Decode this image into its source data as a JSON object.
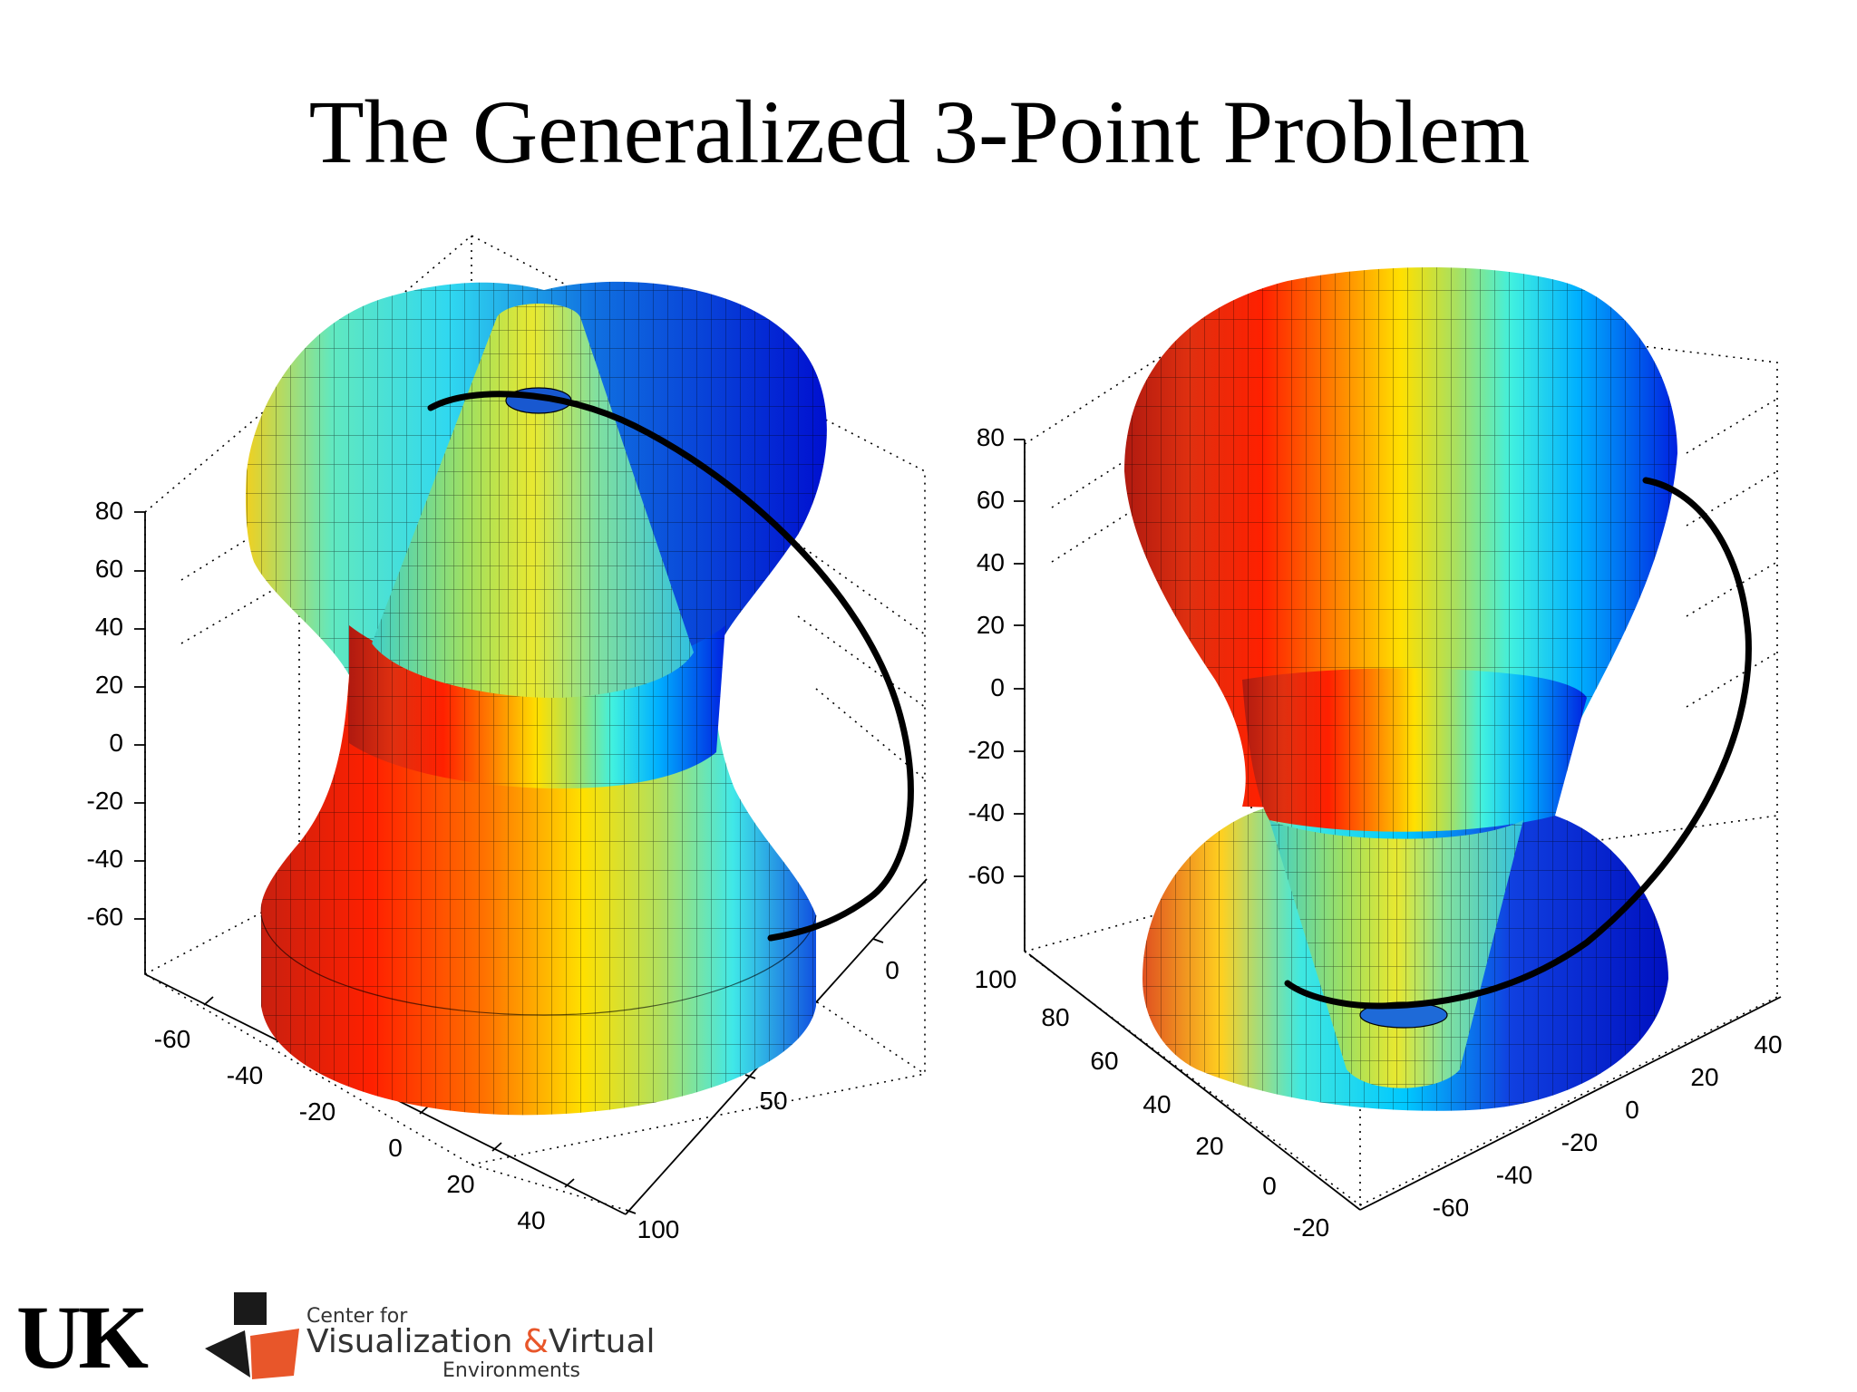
{
  "slide": {
    "title": "The Generalized 3-Point Problem"
  },
  "plots": [
    {
      "z_ticks": [
        "80",
        "60",
        "40",
        "20",
        "0",
        "-20",
        "-40",
        "-60"
      ],
      "x_ticks": [
        "-60",
        "-40",
        "-20",
        "0",
        "20",
        "40"
      ],
      "y_ticks": [
        "0",
        "50",
        "100"
      ]
    },
    {
      "z_ticks": [
        "80",
        "60",
        "40",
        "20",
        "0",
        "-20",
        "-40",
        "-60"
      ],
      "x_ticks": [
        "100",
        "80",
        "60",
        "40",
        "20",
        "0",
        "-20"
      ],
      "y_ticks": [
        "40",
        "20",
        "0",
        "-20",
        "-40",
        "-60"
      ]
    }
  ],
  "colors": {
    "colormap": "jet",
    "curve": "#000000",
    "logo_accent": "#e8562a"
  },
  "logos": {
    "uk": "UK",
    "cvve_line1": "Center for",
    "cvve_line2a": "Visualization",
    "cvve_amp": "&",
    "cvve_line2b": "Virtual",
    "cvve_line3": "Environments"
  }
}
